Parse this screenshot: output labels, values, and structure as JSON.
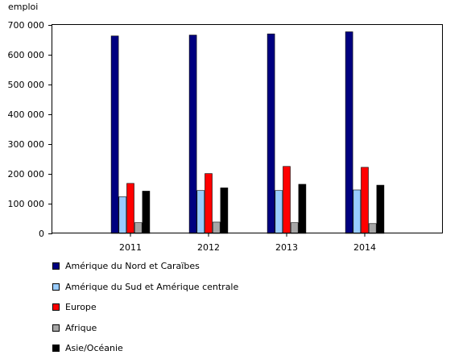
{
  "chart_data": {
    "type": "bar",
    "unit_label": "emploi",
    "categories": [
      "2011",
      "2012",
      "2013",
      "2014"
    ],
    "series": [
      {
        "name": "Amérique du Nord et Caraïbes",
        "color": "#000080",
        "values": [
          663000,
          666000,
          670000,
          677000
        ]
      },
      {
        "name": "Amérique du Sud et Amérique centrale",
        "color": "#99ccff",
        "values": [
          123000,
          144000,
          144000,
          146000
        ]
      },
      {
        "name": "Europe",
        "color": "#ff0000",
        "values": [
          168000,
          201000,
          225000,
          222000
        ]
      },
      {
        "name": "Afrique",
        "color": "#a6a6a6",
        "values": [
          36000,
          38000,
          36000,
          33000
        ]
      },
      {
        "name": "Asie/Océanie",
        "color": "#000000",
        "values": [
          142000,
          153000,
          165000,
          162000
        ]
      }
    ],
    "ylim": [
      0,
      700000
    ],
    "yticks": [
      0,
      100000,
      200000,
      300000,
      400000,
      500000,
      600000,
      700000
    ],
    "ytick_labels": [
      "0",
      "100 000",
      "200 000",
      "300 000",
      "400 000",
      "500 000",
      "600 000",
      "700 000"
    ],
    "grid": false,
    "legend_position": "bottom"
  }
}
